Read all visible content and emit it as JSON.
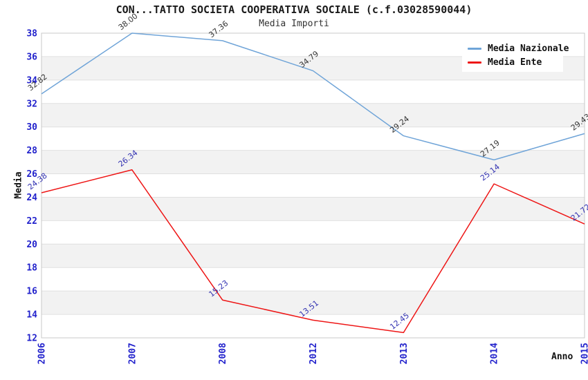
{
  "header": {
    "title": "CON...TATTO SOCIETA COOPERATIVA SOCIALE (c.f.03028590044)",
    "subtitle": "Media Importi"
  },
  "axes": {
    "x_title": "Anno",
    "y_title": "Media"
  },
  "legend": {
    "items": [
      {
        "label": "Media Nazionale",
        "color": "#6FA4D8"
      },
      {
        "label": "Media Ente",
        "color": "#EE1515"
      }
    ]
  },
  "chart_data": {
    "type": "line",
    "title": "CON...TATTO SOCIETA COOPERATIVA SOCIALE (c.f.03028590044)",
    "subtitle": "Media Importi",
    "xlabel": "Anno",
    "ylabel": "Media",
    "categories": [
      "2006",
      "2007",
      "2008",
      "2012",
      "2013",
      "2014",
      "2015"
    ],
    "series": [
      {
        "name": "Media Nazionale",
        "color": "#6FA4D8",
        "label_color": "#333333",
        "values": [
          32.82,
          38.0,
          37.36,
          34.79,
          29.24,
          27.19,
          29.43
        ]
      },
      {
        "name": "Media Ente",
        "color": "#EE1515",
        "label_color": "#3333B2",
        "values": [
          24.38,
          26.34,
          15.23,
          13.51,
          12.45,
          25.14,
          21.72
        ]
      }
    ],
    "ylim": [
      12,
      38
    ],
    "ytick_step": 2,
    "grid": "horizontal",
    "band_fill": "alternating",
    "legend_position": "top-right",
    "styles": {
      "tick_color": "#2222CC",
      "band_color": "#F2F2F2",
      "grid_color": "#E0E0E0",
      "border_color": "#C8C8C8"
    }
  }
}
